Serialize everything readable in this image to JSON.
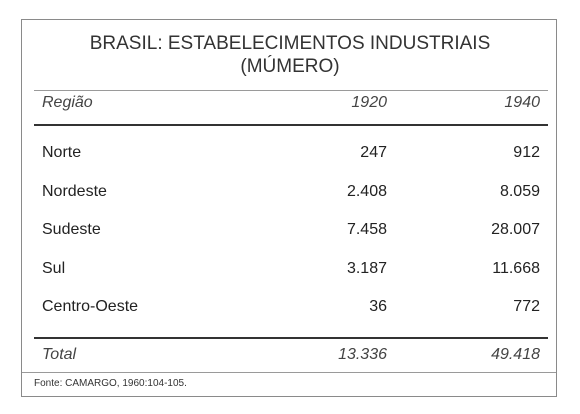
{
  "header": {
    "title": [
      "BRASIL: ESTABELECIMENTOS INDUSTRIAIS",
      "(MÚMERO)"
    ]
  },
  "table": {
    "columns": [
      "Região",
      "1920",
      "1940"
    ],
    "rows": [
      [
        "Norte",
        "247",
        "912"
      ],
      [
        "Nordeste",
        "2.408",
        "8.059"
      ],
      [
        "Sudeste",
        "7.458",
        "28.007"
      ],
      [
        "Sul",
        "3.187",
        "11.668"
      ],
      [
        "Centro-Oeste",
        "36",
        "772"
      ]
    ],
    "total": [
      "Total",
      "13.336",
      "49.418"
    ]
  },
  "footer": {
    "source": "Fonte: CAMARGO, 1960:104-105."
  }
}
